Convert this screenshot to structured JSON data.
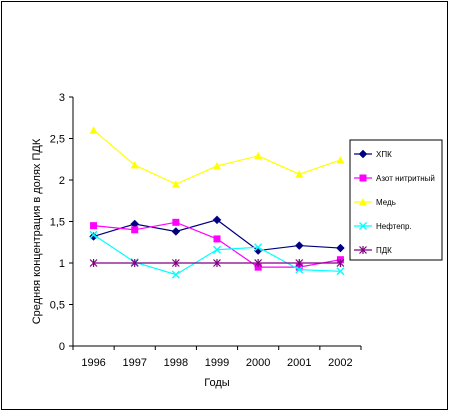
{
  "chart_data": {
    "type": "line",
    "title": "",
    "xlabel": "Годы",
    "ylabel": "Средняя концентрация в долях ПДК",
    "x": [
      "1996",
      "1997",
      "1998",
      "1999",
      "2000",
      "2001",
      "2002"
    ],
    "ylim": [
      0,
      3
    ],
    "yticks": [
      "0",
      "0,5",
      "1",
      "1,5",
      "2",
      "2,5",
      "3"
    ],
    "ytick_values": [
      0,
      0.5,
      1,
      1.5,
      2,
      2.5,
      3
    ],
    "grid": false,
    "legend_position": "right",
    "series": [
      {
        "name": "ХПК",
        "color": "#000080",
        "marker": "diamond",
        "values": [
          1.32,
          1.47,
          1.38,
          1.52,
          1.15,
          1.21,
          1.18
        ]
      },
      {
        "name": "Азот нитритный",
        "color": "#FF00FF",
        "marker": "square",
        "values": [
          1.45,
          1.4,
          1.49,
          1.29,
          0.95,
          0.95,
          1.04
        ]
      },
      {
        "name": "Медь",
        "color": "#FFFF00",
        "marker": "triangle",
        "values": [
          2.6,
          2.18,
          1.95,
          2.17,
          2.29,
          2.07,
          2.24
        ]
      },
      {
        "name": "Нефтепр.",
        "color": "#00FFFF",
        "marker": "x",
        "values": [
          1.34,
          1.01,
          0.86,
          1.16,
          1.19,
          0.92,
          0.9
        ]
      },
      {
        "name": "ПДК",
        "color": "#800080",
        "marker": "star",
        "values": [
          1,
          1,
          1,
          1,
          1,
          1,
          1
        ]
      }
    ]
  }
}
